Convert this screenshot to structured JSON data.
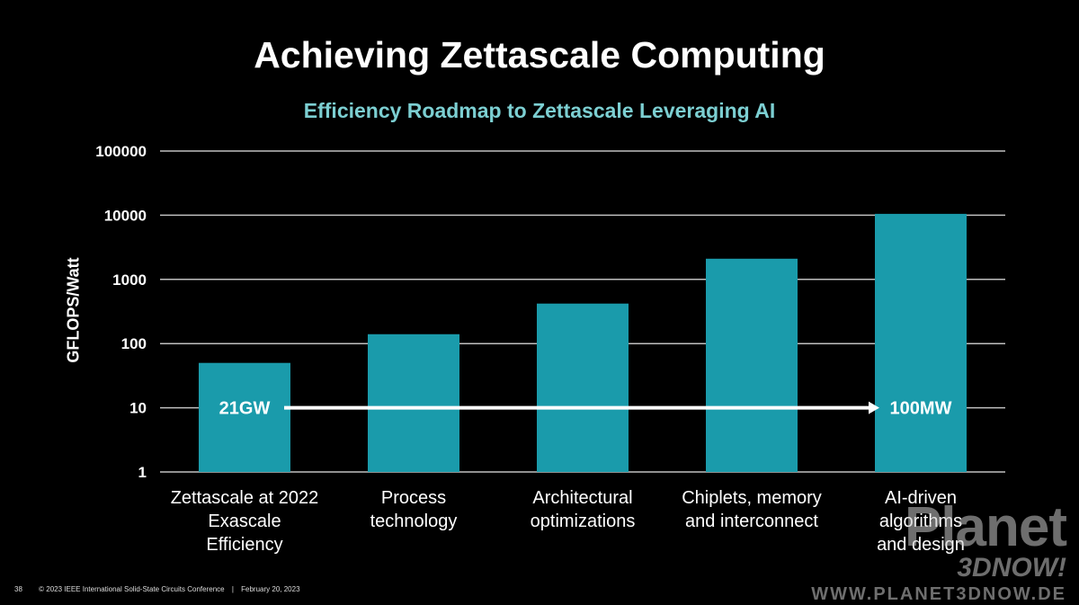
{
  "header": {
    "title": "Achieving Zettascale Computing",
    "subtitle": "Efficiency Roadmap to Zettascale Leveraging AI"
  },
  "chart_data": {
    "type": "bar",
    "title": "Efficiency Roadmap to Zettascale Leveraging AI",
    "xlabel": "",
    "ylabel": "GFLOPS/Watt",
    "yscale": "log",
    "ylim": [
      1,
      100000
    ],
    "yticks": [
      "100000",
      "10000",
      "1000",
      "100",
      "10",
      "1"
    ],
    "grid": true,
    "categories": [
      [
        "Zettascale at 2022",
        "Exascale",
        "Efficiency"
      ],
      [
        "Process",
        "technology"
      ],
      [
        "Architectural",
        "optimizations"
      ],
      [
        "Chiplets, memory",
        "and interconnect"
      ],
      [
        "AI-driven",
        "algorithms",
        "and design"
      ]
    ],
    "values": [
      50,
      140,
      420,
      2100,
      10500
    ],
    "bar_color": "#1a9bab",
    "annotation": {
      "start_label": "21GW",
      "end_label": "100MW",
      "y": 10,
      "arrow_color": "#ffffff"
    }
  },
  "colors": {
    "background": "#000000",
    "accent": "#7ccfd2",
    "grid": "#bfbfbf"
  },
  "footer": {
    "slide_number": "38",
    "copyright": "© 2023 IEEE International Solid-State Circuits Conference",
    "date": "February 20, 2023"
  },
  "watermark": {
    "brand": "Planet",
    "sub": "3DNOW!",
    "url": "WWW.PLANET3DNOW.DE"
  }
}
